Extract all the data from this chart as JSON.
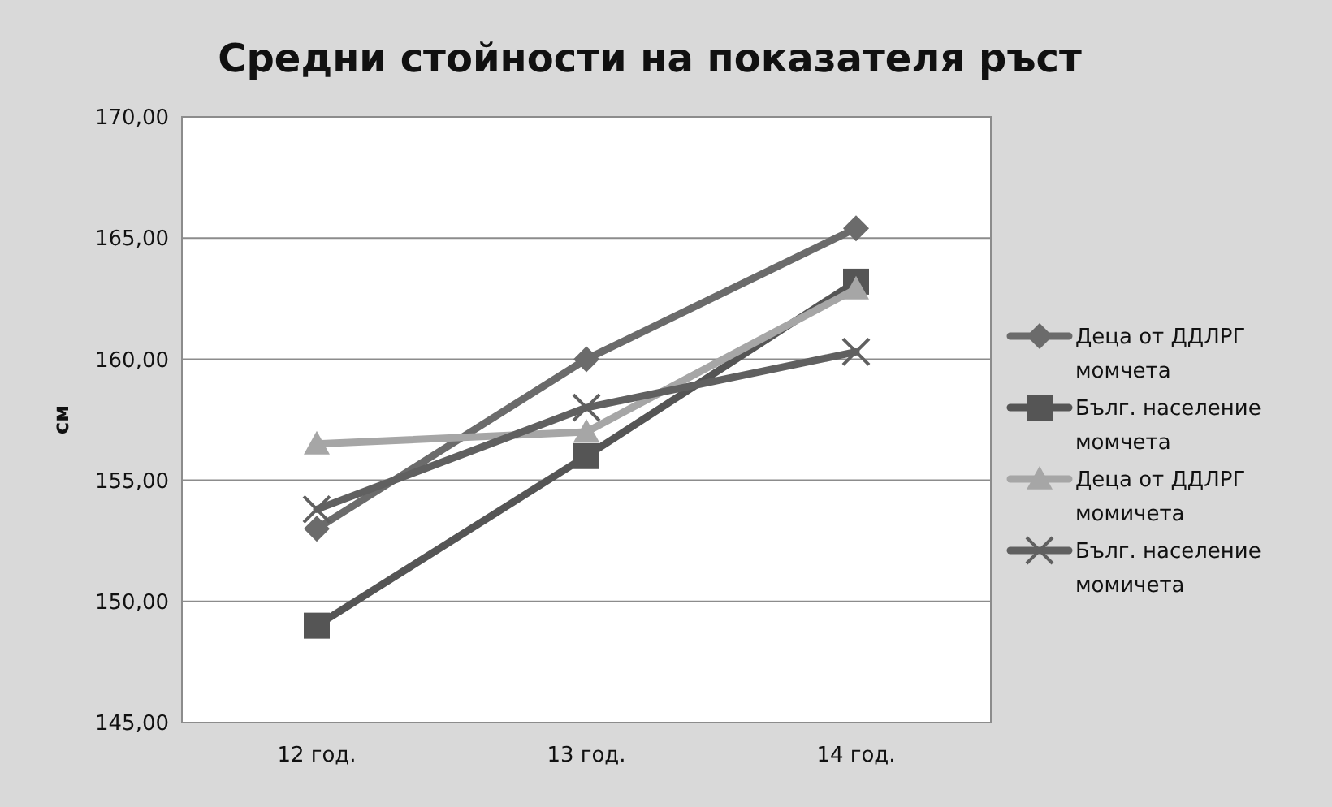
{
  "chart_data": {
    "type": "line",
    "title": "Средни стойности на показателя ръст",
    "ylabel": "см",
    "categories": [
      "12 год.",
      "13 год.",
      "14 год."
    ],
    "series": [
      {
        "name": "Деца от ДДЛРГ момчета",
        "color": "#6b6b6b",
        "marker": "diamond",
        "values": [
          153.0,
          160.0,
          165.4
        ]
      },
      {
        "name": "Бълг. население момчета",
        "color": "#555555",
        "marker": "square",
        "values": [
          149.0,
          156.0,
          163.2
        ]
      },
      {
        "name": "Деца от ДДЛРГ момичета",
        "color": "#a6a6a6",
        "marker": "triangle",
        "values": [
          156.5,
          157.0,
          162.9
        ]
      },
      {
        "name": "Бълг. население момичета",
        "color": "#606060",
        "marker": "cross",
        "values": [
          153.8,
          158.0,
          160.3
        ]
      }
    ],
    "ylim": [
      145,
      170
    ],
    "yticks": [
      {
        "value": 145,
        "label": "145,00"
      },
      {
        "value": 150,
        "label": "150,00"
      },
      {
        "value": 155,
        "label": "155,00"
      },
      {
        "value": 160,
        "label": "160,00"
      },
      {
        "value": 165,
        "label": "165,00"
      },
      {
        "value": 170,
        "label": "170,00"
      }
    ],
    "grid": "y",
    "legend": "right",
    "line_style": "solid"
  }
}
